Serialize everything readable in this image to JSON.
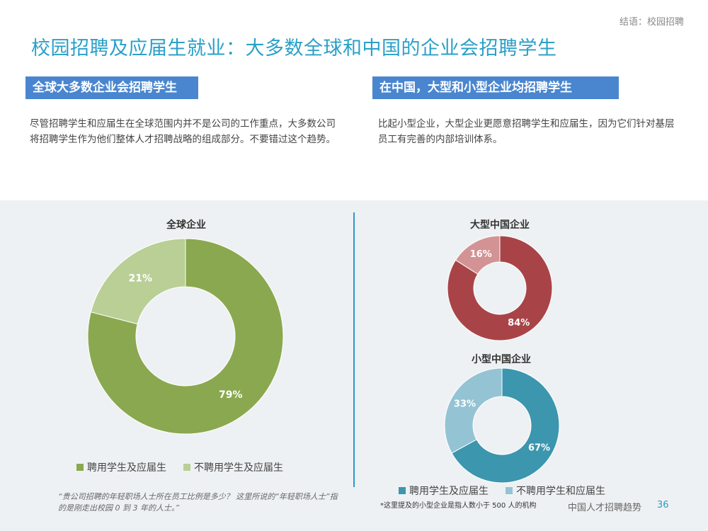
{
  "breadcrumb": "结语：校园招聘",
  "page_title": "校园招聘及应届生就业：大多数全球和中国的企业会招聘学生",
  "left": {
    "header": "全球大多数企业会招聘学生",
    "paragraph": "尽管招聘学生和应届生在全球范围内并不是公司的工作重点，大多数公司将招聘学生作为他们整体人才招聘战略的组成部分。不要错过这个趋势。"
  },
  "right": {
    "header": "在中国，大型和小型企业均招聘学生",
    "paragraph": "比起小型企业，大型企业更愿意招聘学生和应届生，因为它们针对基层员工有完善的内部培训体系。"
  },
  "chart_data": [
    {
      "type": "pie",
      "title": "全球企业",
      "categories": [
        "聘用学生及应届生",
        "不聘用学生及应届生"
      ],
      "values": [
        79,
        21
      ],
      "labels": [
        "79%",
        "21%"
      ],
      "colors": [
        "#8aa84f",
        "#b9cf96"
      ],
      "legend": "bottom"
    },
    {
      "type": "pie",
      "title": "大型中国企业",
      "categories": [
        "聘用学生及应届生",
        "不聘用学生和应届生"
      ],
      "values": [
        84,
        16
      ],
      "labels": [
        "84%",
        "16%"
      ],
      "colors": [
        "#a84448",
        "#d39394"
      ]
    },
    {
      "type": "pie",
      "title": "小型中国企业",
      "categories": [
        "聘用学生及应届生",
        "不聘用学生和应届生"
      ],
      "values": [
        67,
        33
      ],
      "labels": [
        "67%",
        "33%"
      ],
      "colors": [
        "#3b96ae",
        "#94c3d4"
      ],
      "legend": "bottom"
    }
  ],
  "legend_left": {
    "items": [
      {
        "label": "聘用学生及应届生",
        "color": "#8aa84f"
      },
      {
        "label": "不聘用学生及应届生",
        "color": "#b9cf96"
      }
    ]
  },
  "legend_right": {
    "items": [
      {
        "label": "聘用学生及应届生",
        "color": "#3b96ae"
      },
      {
        "label": "不聘用学生和应届生",
        "color": "#94c3d4"
      }
    ]
  },
  "footnote_quote": "“贵公司招聘的年轻职场人士所在员工比例是多少？ 这里所说的“年轻职场人士”指的是刚走出校园 0 到 3 年的人士。”",
  "footnote_small": "*这里提及的小型企业是指人数小于 500 人的机构",
  "footer_brand": "中国人才招聘趋势",
  "page_number": "36"
}
